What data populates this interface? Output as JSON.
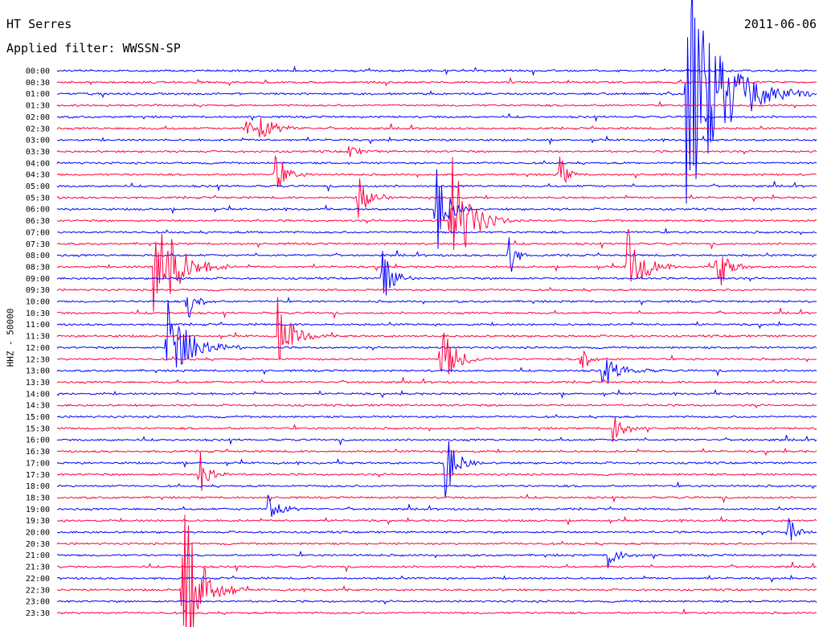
{
  "header": {
    "station": "HT Serres",
    "date": "2011-06-06",
    "filter": "Applied filter: WWSSN-SP"
  },
  "chart_data": {
    "type": "line",
    "title": "HT Serres",
    "subtitle": "Applied filter: WWSSN-SP",
    "ylabel": "HHZ - 50000",
    "xlabel": "",
    "series_colors": [
      "#0000ff",
      "#ff0040"
    ],
    "y_tick_labels": [
      "00:00",
      "00:30",
      "01:00",
      "01:30",
      "02:00",
      "02:30",
      "03:00",
      "03:30",
      "04:00",
      "04:30",
      "05:00",
      "05:30",
      "06:00",
      "06:30",
      "07:00",
      "07:30",
      "08:00",
      "08:30",
      "09:00",
      "09:30",
      "10:00",
      "10:30",
      "11:00",
      "11:30",
      "12:00",
      "12:30",
      "13:00",
      "13:30",
      "14:00",
      "14:30",
      "15:00",
      "15:30",
      "16:00",
      "16:30",
      "17:00",
      "17:30",
      "18:00",
      "18:30",
      "19:00",
      "19:30",
      "20:00",
      "20:30",
      "21:00",
      "21:30",
      "22:00",
      "22:30",
      "23:00",
      "23:30"
    ],
    "trace_minutes": 30,
    "events": [
      {
        "row": 2,
        "minute": 24.8,
        "amplitude": 1.0,
        "duration": 2.0
      },
      {
        "row": 5,
        "minute": 7.4,
        "amplitude": 0.12,
        "duration": 0.4
      },
      {
        "row": 5,
        "minute": 7.9,
        "amplitude": 0.15,
        "duration": 0.8
      },
      {
        "row": 7,
        "minute": 11.5,
        "amplitude": 0.06,
        "duration": 0.5
      },
      {
        "row": 9,
        "minute": 8.6,
        "amplitude": 0.16,
        "duration": 0.6
      },
      {
        "row": 9,
        "minute": 19.8,
        "amplitude": 0.18,
        "duration": 0.4
      },
      {
        "row": 11,
        "minute": 11.8,
        "amplitude": 0.22,
        "duration": 0.6
      },
      {
        "row": 12,
        "minute": 14.9,
        "amplitude": 0.45,
        "duration": 0.6
      },
      {
        "row": 13,
        "minute": 15.5,
        "amplitude": 0.6,
        "duration": 1.0
      },
      {
        "row": 16,
        "minute": 17.8,
        "amplitude": 0.4,
        "duration": 0.3
      },
      {
        "row": 17,
        "minute": 3.8,
        "amplitude": 0.6,
        "duration": 1.2
      },
      {
        "row": 17,
        "minute": 22.5,
        "amplitude": 0.35,
        "duration": 0.8
      },
      {
        "row": 17,
        "minute": 26.0,
        "amplitude": 0.25,
        "duration": 0.6
      },
      {
        "row": 18,
        "minute": 12.8,
        "amplitude": 0.25,
        "duration": 0.6
      },
      {
        "row": 20,
        "minute": 5.1,
        "amplitude": 0.2,
        "duration": 0.5
      },
      {
        "row": 23,
        "minute": 8.7,
        "amplitude": 0.3,
        "duration": 0.8
      },
      {
        "row": 24,
        "minute": 4.3,
        "amplitude": 0.45,
        "duration": 1.2
      },
      {
        "row": 25,
        "minute": 15.1,
        "amplitude": 0.3,
        "duration": 0.8
      },
      {
        "row": 25,
        "minute": 20.6,
        "amplitude": 0.2,
        "duration": 0.4
      },
      {
        "row": 26,
        "minute": 21.5,
        "amplitude": 0.12,
        "duration": 1.0
      },
      {
        "row": 31,
        "minute": 21.9,
        "amplitude": 0.15,
        "duration": 0.6
      },
      {
        "row": 34,
        "minute": 15.3,
        "amplitude": 0.3,
        "duration": 0.6
      },
      {
        "row": 35,
        "minute": 5.6,
        "amplitude": 0.25,
        "duration": 0.5
      },
      {
        "row": 38,
        "minute": 8.3,
        "amplitude": 0.18,
        "duration": 0.6
      },
      {
        "row": 40,
        "minute": 28.8,
        "amplitude": 0.2,
        "duration": 0.4
      },
      {
        "row": 42,
        "minute": 21.7,
        "amplitude": 0.12,
        "duration": 0.6
      },
      {
        "row": 45,
        "minute": 4.9,
        "amplitude": 0.8,
        "duration": 1.0
      }
    ]
  }
}
